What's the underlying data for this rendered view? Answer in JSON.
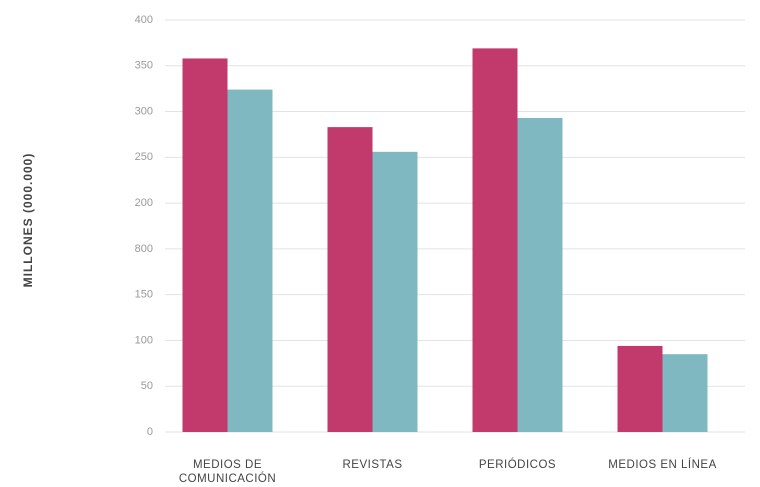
{
  "chart_data": {
    "type": "bar",
    "y_label": "MILLONES (000.000)",
    "categories": [
      "MEDIOS DE COMUNICACIÓN",
      "REVISTAS",
      "PERIÓDICOS",
      "MEDIOS EN LÍNEA"
    ],
    "series": [
      {
        "color": "#c2396b",
        "values": [
          408,
          333,
          419,
          94
        ]
      },
      {
        "color": "#7fb8c0",
        "values": [
          374,
          306,
          343,
          85
        ]
      }
    ],
    "ylim": [
      0,
      450
    ],
    "yticks": [
      0,
      50,
      100,
      150,
      {
        "value": 200,
        "label": "800"
      },
      {
        "value": 250,
        "label": "200"
      },
      {
        "value": 300,
        "label": "250"
      },
      {
        "value": 350,
        "label": "300"
      },
      {
        "value": 400,
        "label": "350"
      },
      {
        "value": 450,
        "label": "400"
      }
    ],
    "grid": true
  }
}
